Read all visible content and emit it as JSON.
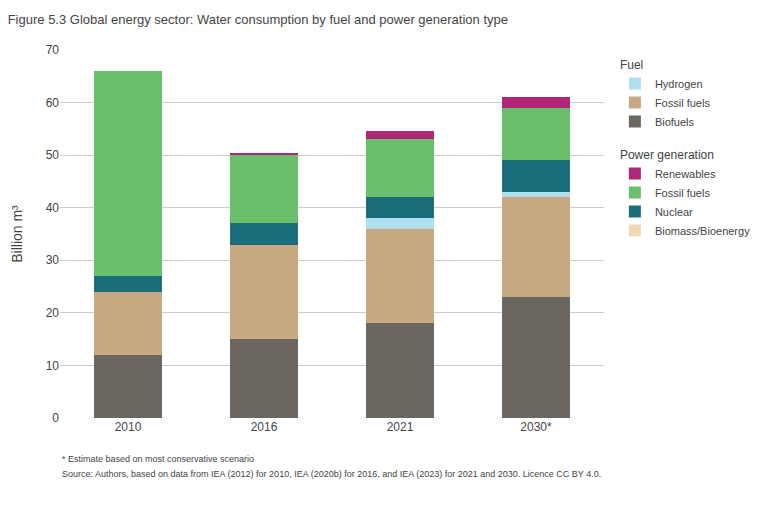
{
  "chart_data": {
    "type": "bar",
    "stacked": true,
    "title": "Figure 5.3 Global energy sector: Water consumption by fuel and power generation type",
    "ylabel": "Billion m³",
    "footnotes": [
      "* Estimate based on most conservative scenario",
      "Source: Authors, based on data from IEA (2012) for 2010, IEA (2020b) for 2016, and IEA (2023) for 2021 and 2030. Licence CC BY 4.0."
    ],
    "categories": [
      "2010",
      "2016",
      "2021",
      "2030*"
    ],
    "series": [
      {
        "name": "Biofuels",
        "group": "Fuel",
        "color": "#6b6660",
        "values": [
          12.0,
          15.0,
          18.0,
          23.0
        ]
      },
      {
        "name": "Fossil fuels",
        "group": "Fuel",
        "color": "#c8a882",
        "values": [
          12.0,
          18.0,
          18.0,
          19.0
        ]
      },
      {
        "name": "Hydrogen",
        "group": "Fuel",
        "color": "#b0dff0",
        "values": [
          0.0,
          0.0,
          2.0,
          1.0
        ]
      },
      {
        "name": "Biomass/Bioenergy",
        "group": "Power generation",
        "color": "#f0d9b5",
        "values": [
          0.0,
          0.0,
          0.0,
          0.0
        ]
      },
      {
        "name": "Nuclear",
        "group": "Power generation",
        "color": "#1a6e7a",
        "values": [
          3.0,
          4.0,
          4.0,
          6.0
        ]
      },
      {
        "name": "Fossil fuels",
        "group": "Power generation",
        "color": "#6abf6a",
        "values": [
          39.0,
          13.0,
          11.0,
          10.0
        ]
      },
      {
        "name": "Renewables",
        "group": "Power generation",
        "color": "#b0277a",
        "values": [
          0.0,
          0.5,
          1.5,
          2.0
        ]
      }
    ],
    "ylim": [
      0,
      70
    ],
    "yticks": [
      0,
      10,
      20,
      30,
      40,
      50,
      60,
      70
    ],
    "grid": true,
    "grid_color": "#cccccc",
    "legend": "right"
  }
}
